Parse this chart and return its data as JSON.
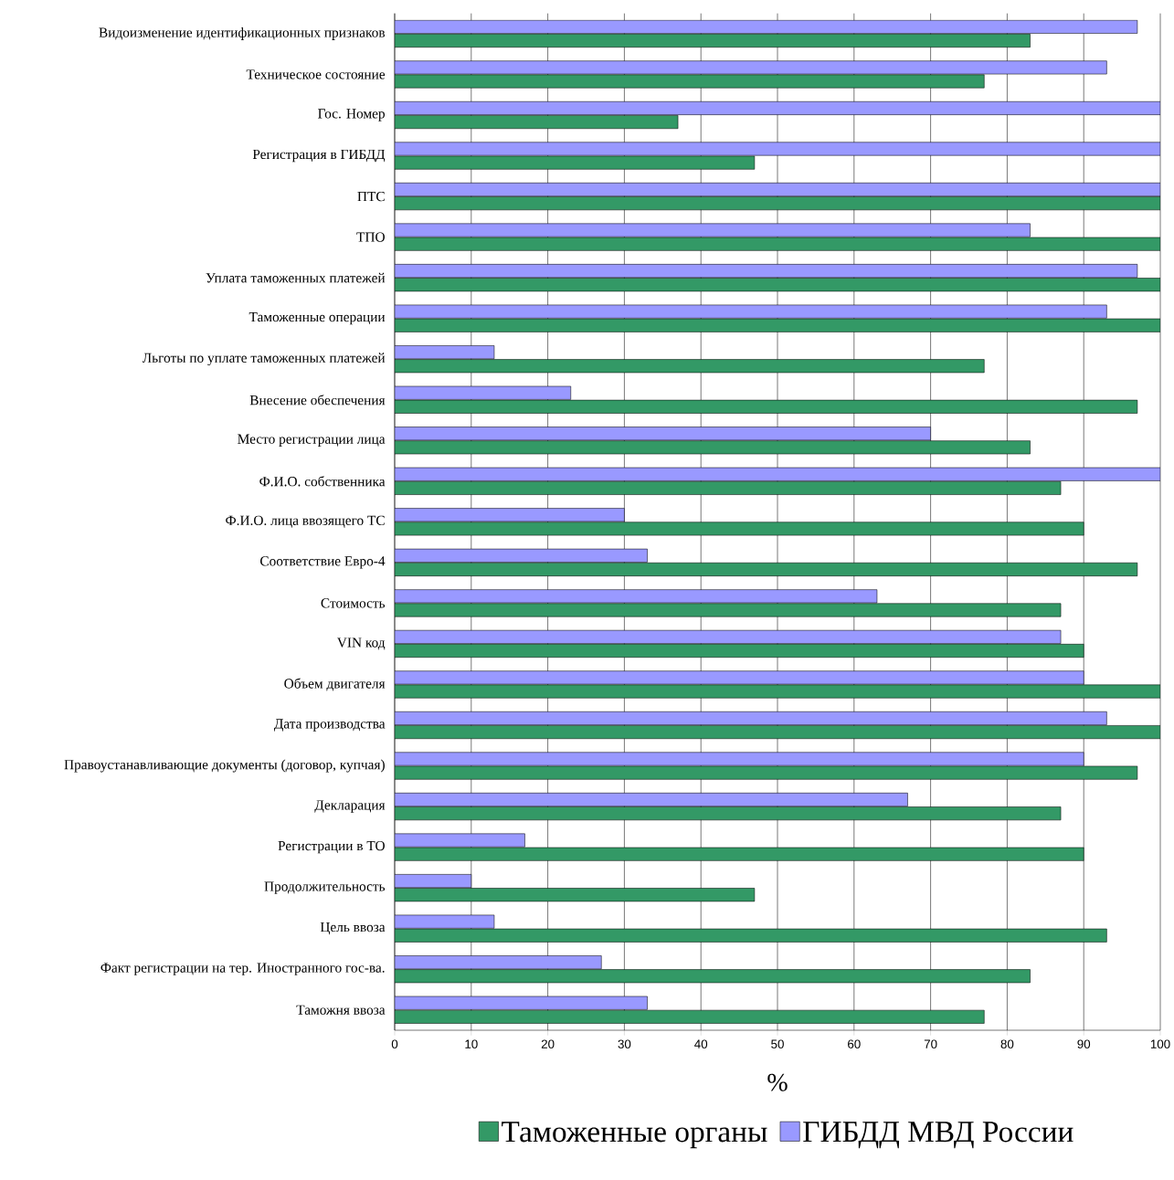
{
  "chart_data": {
    "type": "bar",
    "orientation": "horizontal",
    "xlabel": "%",
    "xlim": [
      0,
      100
    ],
    "xticks": [
      0,
      10,
      20,
      30,
      40,
      50,
      60,
      70,
      80,
      90,
      100
    ],
    "grid": "x",
    "legend": "bottom",
    "categories": [
      "Видоизменение идентификационных признаков",
      "Техническое состояние",
      "Гос. Номер",
      "Регистрация в ГИБДД",
      "ПТС",
      "ТПО",
      "Уплата таможенных платежей",
      "Таможенные операции",
      "Льготы по уплате таможенных платежей",
      "Внесение обеспечения",
      "Место регистрации лица",
      "Ф.И.О. собственника",
      "Ф.И.О. лица ввозящего ТС",
      "Соответствие Евро-4",
      "Стоимость",
      "VIN код",
      "Объем двигателя",
      "Дата производства",
      "Правоустанавливающие документы (договор, купчая)",
      "Декларация",
      "Регистрации в ТО",
      "Продолжительность",
      "Цель ввоза",
      "Факт регистрации на тер. Иностранного гос-ва.",
      "Таможня ввоза"
    ],
    "series": [
      {
        "name": "Таможенные органы",
        "color": "#339966",
        "values": [
          83,
          77,
          37,
          47,
          100,
          100,
          100,
          100,
          77,
          97,
          83,
          87,
          90,
          97,
          87,
          90,
          100,
          100,
          97,
          87,
          90,
          47,
          93,
          83,
          77
        ]
      },
      {
        "name": "ГИБДД МВД России",
        "color": "#9999ff",
        "values": [
          97,
          93,
          100,
          100,
          100,
          83,
          97,
          93,
          13,
          23,
          70,
          100,
          30,
          33,
          63,
          87,
          90,
          93,
          90,
          67,
          17,
          10,
          13,
          27,
          33
        ]
      }
    ]
  }
}
